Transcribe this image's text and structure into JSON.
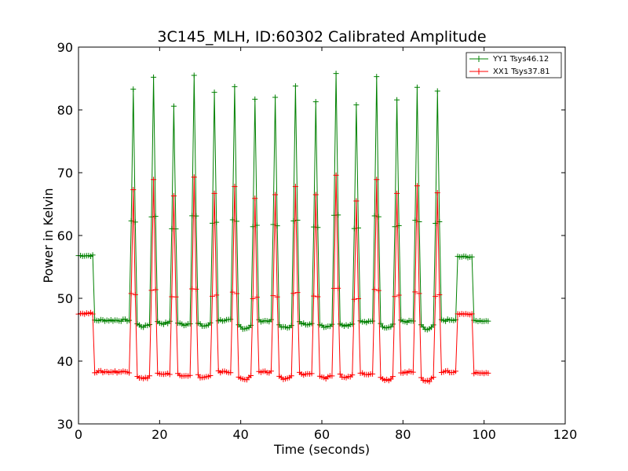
{
  "chart_data": {
    "type": "line",
    "title": "3C145_MLH, ID:60302 Calibrated Amplitude",
    "xlabel": "Time (seconds)",
    "ylabel": "Power in Kelvin",
    "xlim": [
      0,
      120
    ],
    "ylim": [
      30,
      90
    ],
    "xticks": [
      "0",
      "20",
      "40",
      "60",
      "80",
      "100",
      "120"
    ],
    "yticks": [
      "30",
      "40",
      "50",
      "60",
      "70",
      "80",
      "90"
    ],
    "grid": false,
    "legend_position": "top-right",
    "sampling_interval": 0.5,
    "x_start": 0,
    "x_end": 101,
    "series": [
      {
        "name": "YY1 Tsys46.12",
        "color": "#008000",
        "marker": "+",
        "baseline": 46.5,
        "pre_level": 56.8,
        "pre_end": 4,
        "post_level": 56.6,
        "post_range": [
          93.5,
          97
        ],
        "tail_level": 46.4,
        "peaks": [
          {
            "x": 13.5,
            "y": 83.3
          },
          {
            "x": 18.5,
            "y": 85.2
          },
          {
            "x": 23.5,
            "y": 80.6
          },
          {
            "x": 28.5,
            "y": 85.5
          },
          {
            "x": 33.5,
            "y": 82.8
          },
          {
            "x": 38.5,
            "y": 83.7
          },
          {
            "x": 43.5,
            "y": 81.7
          },
          {
            "x": 48.5,
            "y": 82.0
          },
          {
            "x": 53.5,
            "y": 83.8
          },
          {
            "x": 58.5,
            "y": 81.3
          },
          {
            "x": 63.5,
            "y": 85.8
          },
          {
            "x": 68.5,
            "y": 80.8
          },
          {
            "x": 73.5,
            "y": 85.3
          },
          {
            "x": 78.5,
            "y": 81.6
          },
          {
            "x": 83.5,
            "y": 83.6
          },
          {
            "x": 88.5,
            "y": 83.0
          }
        ],
        "dips": [
          45.5,
          46.0,
          45.8,
          45.6,
          46.5,
          45.2,
          46.4,
          45.3,
          45.9,
          45.5,
          45.7,
          46.2,
          45.4,
          46.3,
          45.0
        ]
      },
      {
        "name": "XX1 Tsys37.81",
        "color": "#ff0000",
        "marker": "+",
        "baseline": 38.3,
        "pre_level": 47.6,
        "pre_end": 4,
        "post_level": 47.5,
        "post_range": [
          93.5,
          97
        ],
        "tail_level": 38.1,
        "peaks": [
          {
            "x": 13.5,
            "y": 67.3
          },
          {
            "x": 18.5,
            "y": 68.9
          },
          {
            "x": 23.5,
            "y": 66.3
          },
          {
            "x": 28.5,
            "y": 69.3
          },
          {
            "x": 33.5,
            "y": 66.7
          },
          {
            "x": 38.5,
            "y": 67.8
          },
          {
            "x": 43.5,
            "y": 65.9
          },
          {
            "x": 48.5,
            "y": 66.5
          },
          {
            "x": 53.5,
            "y": 67.8
          },
          {
            "x": 58.5,
            "y": 66.5
          },
          {
            "x": 63.5,
            "y": 69.6
          },
          {
            "x": 68.5,
            "y": 65.5
          },
          {
            "x": 73.5,
            "y": 68.9
          },
          {
            "x": 78.5,
            "y": 66.7
          },
          {
            "x": 83.5,
            "y": 67.9
          },
          {
            "x": 88.5,
            "y": 66.8
          }
        ],
        "dips": [
          37.2,
          37.8,
          37.6,
          37.3,
          38.3,
          37.0,
          38.3,
          37.1,
          37.9,
          37.3,
          37.4,
          38.0,
          37.0,
          38.2,
          36.8
        ]
      }
    ]
  }
}
